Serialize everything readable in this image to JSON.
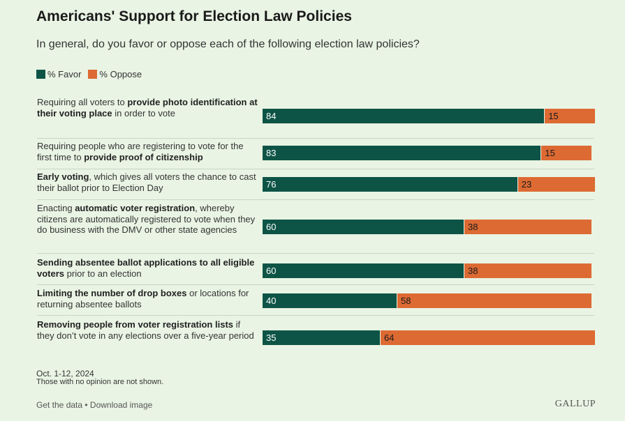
{
  "title": "Americans' Support for Election Law Policies",
  "subtitle": "In general, do you favor or oppose each of the following election law policies?",
  "colors": {
    "favor": "#0d5446",
    "oppose": "#dd6a33"
  },
  "chart_data": {
    "type": "bar",
    "orientation": "horizontal",
    "stacked": true,
    "legend_position": "top-left",
    "grid": false,
    "xlim": [
      0,
      100
    ],
    "categories": [
      [
        {
          "t": "Requiring all voters to "
        },
        {
          "t": "provide photo identification at their voting place",
          "b": true
        },
        {
          "t": " in order to vote"
        }
      ],
      [
        {
          "t": "Requiring people who are registering to vote for the first time to "
        },
        {
          "t": "provide proof of citizenship",
          "b": true
        }
      ],
      [
        {
          "t": "Early voting",
          "b": true
        },
        {
          "t": ", which gives all voters the chance to cast their ballot prior to Election Day"
        }
      ],
      [
        {
          "t": "Enacting "
        },
        {
          "t": "automatic voter registration",
          "b": true
        },
        {
          "t": ", whereby citizens are automatically registered to vote when they do business with the DMV or other state agencies"
        }
      ],
      [
        {
          "t": "Sending absentee ballot applications to all eligible voters",
          "b": true
        },
        {
          "t": " prior to an election"
        }
      ],
      [
        {
          "t": "Limiting the number of drop boxes",
          "b": true
        },
        {
          "t": " or locations for returning absentee ballots"
        }
      ],
      [
        {
          "t": "Removing people from voter registration lists",
          "b": true
        },
        {
          "t": " if they don’t vote in any elections over a five-year period"
        }
      ]
    ],
    "series": [
      {
        "name": "% Favor",
        "values": [
          84,
          83,
          76,
          60,
          60,
          40,
          35
        ]
      },
      {
        "name": "% Oppose",
        "values": [
          15,
          15,
          23,
          38,
          38,
          58,
          64
        ]
      }
    ]
  },
  "footer": {
    "date": "Oct. 1-12, 2024",
    "note": "Those with no opinion are not shown.",
    "get_data": "Get the data",
    "separator": " • ",
    "download": "Download image",
    "brand": "GALLUP"
  }
}
